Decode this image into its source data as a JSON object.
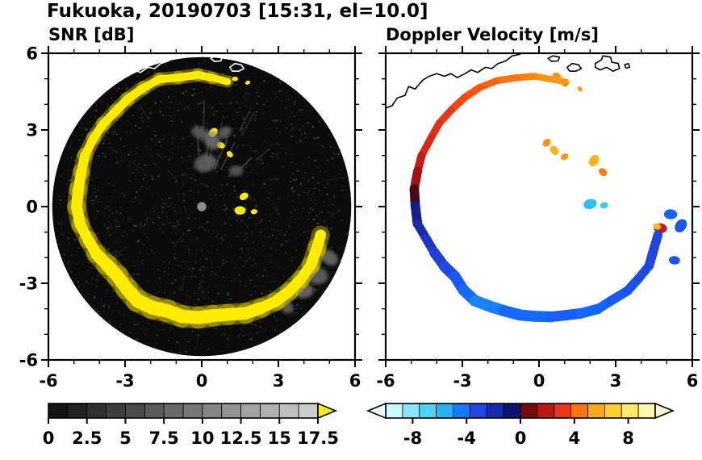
{
  "header": {
    "title": "Fukuoka, 20190703 [15:31, el=10.0]",
    "site": "Fukuoka",
    "date": "20190703",
    "time": "15:31",
    "elevation": "10.0"
  },
  "panels": {
    "snr": {
      "title": "SNR [dB]"
    },
    "doppler": {
      "title": "Doppler Velocity [m/s]"
    }
  },
  "axes": {
    "xlim": [
      -6,
      6
    ],
    "ylim": [
      -6,
      6
    ],
    "major_ticks": [
      -6,
      -3,
      0,
      3,
      6
    ],
    "major_tick_labels": [
      "-6",
      "-3",
      "0",
      "3",
      "6"
    ],
    "minor_ticks": [
      -5,
      -4,
      -2,
      -1,
      1,
      2,
      4,
      5
    ]
  },
  "colorbars": {
    "snr": {
      "range": [
        0,
        17.5
      ],
      "segment_step": 1.25,
      "tick_values": [
        0,
        2.5,
        5,
        7.5,
        10,
        12.5,
        15,
        17.5
      ],
      "tick_labels": [
        "0",
        "2.5",
        "5",
        "7.5",
        "10",
        "12.5",
        "15",
        "17.5"
      ],
      "gray_min": "#0c0c0c",
      "gray_max": "#d4d4d4",
      "overflow_arrow_color": "#ffec00"
    },
    "doppler": {
      "range": [
        -10,
        10
      ],
      "segment_step": 1.25,
      "tick_values": [
        -8,
        -4,
        0,
        4,
        8
      ],
      "tick_labels": [
        "-8",
        "-4",
        "0",
        "4",
        "8"
      ],
      "underflow_arrow_color": "#eaffff",
      "overflow_arrow_color": "#fffbd2",
      "colormap_stops": [
        [
          -10,
          "#eaffff"
        ],
        [
          -9,
          "#b8f2ff"
        ],
        [
          -7.5,
          "#6cdcf8"
        ],
        [
          -6,
          "#2cc0ee"
        ],
        [
          -5,
          "#1e9aff"
        ],
        [
          -4,
          "#1464ff"
        ],
        [
          -3,
          "#2244e0"
        ],
        [
          -2,
          "#1a2cb4"
        ],
        [
          -1,
          "#101a86"
        ],
        [
          -0.15,
          "#050f58"
        ],
        [
          0.15,
          "#57060a"
        ],
        [
          1,
          "#8a0f10"
        ],
        [
          2,
          "#c21a14"
        ],
        [
          3,
          "#e8321a"
        ],
        [
          3.8,
          "#ff5a10"
        ],
        [
          5,
          "#ff9410"
        ],
        [
          6.5,
          "#ffc428"
        ],
        [
          8,
          "#ffea60"
        ],
        [
          10,
          "#fffbd2"
        ]
      ]
    }
  },
  "coastline": {
    "main": [
      [
        -6.0,
        3.85
      ],
      [
        -5.75,
        3.95
      ],
      [
        -5.55,
        4.25
      ],
      [
        -5.25,
        4.35
      ],
      [
        -5.1,
        4.7
      ],
      [
        -4.85,
        4.6
      ],
      [
        -4.55,
        4.95
      ],
      [
        -4.3,
        5.1
      ],
      [
        -4.0,
        5.2
      ],
      [
        -3.7,
        5.1
      ],
      [
        -3.45,
        5.2
      ],
      [
        -3.2,
        5.05
      ],
      [
        -2.9,
        5.2
      ],
      [
        -2.65,
        5.35
      ],
      [
        -2.4,
        5.25
      ],
      [
        -2.1,
        5.45
      ],
      [
        -1.85,
        5.4
      ],
      [
        -1.6,
        5.6
      ],
      [
        -1.3,
        5.7
      ],
      [
        -1.05,
        5.9
      ],
      [
        -0.8,
        5.95
      ],
      [
        -0.55,
        6.05
      ]
    ],
    "islands": [
      [
        [
          0.35,
          5.8
        ],
        [
          0.55,
          5.9
        ],
        [
          0.8,
          5.85
        ],
        [
          0.75,
          5.7
        ],
        [
          0.5,
          5.68
        ]
      ],
      [
        [
          1.1,
          5.45
        ],
        [
          1.3,
          5.6
        ],
        [
          1.55,
          5.55
        ],
        [
          1.65,
          5.4
        ],
        [
          1.45,
          5.3
        ],
        [
          1.2,
          5.3
        ]
      ],
      [
        [
          2.2,
          5.6
        ],
        [
          2.45,
          5.75
        ],
        [
          2.5,
          5.9
        ],
        [
          2.8,
          5.85
        ],
        [
          2.85,
          5.65
        ],
        [
          3.1,
          5.6
        ],
        [
          3.15,
          5.4
        ],
        [
          2.9,
          5.3
        ],
        [
          2.65,
          5.45
        ],
        [
          2.4,
          5.35
        ],
        [
          2.2,
          5.45
        ]
      ],
      [
        [
          3.35,
          5.55
        ],
        [
          3.5,
          5.6
        ],
        [
          3.55,
          5.45
        ],
        [
          3.4,
          5.42
        ]
      ]
    ]
  },
  "chart_data": [
    {
      "type": "heatmap",
      "name": "SNR",
      "title": "SNR [dB]",
      "units": "dB",
      "xlim": [
        -6,
        6
      ],
      "ylim": [
        -6,
        6
      ],
      "colorbar": {
        "range": [
          0,
          17.5
        ],
        "ticks": [
          0,
          2.5,
          5,
          7.5,
          10,
          12.5,
          15,
          17.5
        ],
        "colormap": "grayscale",
        "overflow": "yellow"
      },
      "scan_disc": {
        "cx": 0,
        "cy": 0,
        "radius": 5.85,
        "color": "#0b0b0b"
      },
      "center_marker": {
        "x": 0,
        "y": 0,
        "radius": 0.18,
        "color": "#8f8f8f"
      },
      "echo_ring_points": [
        [
          78,
          5.0,
          18,
          0.26
        ],
        [
          85,
          5.05,
          18,
          0.3
        ],
        [
          92,
          5.12,
          18,
          0.3
        ],
        [
          100,
          5.15,
          18,
          0.32
        ],
        [
          108,
          5.2,
          18,
          0.3
        ],
        [
          116,
          5.18,
          18,
          0.32
        ],
        [
          124,
          5.12,
          18,
          0.35
        ],
        [
          132,
          5.05,
          18,
          0.33
        ],
        [
          140,
          5.08,
          18,
          0.35
        ],
        [
          148,
          5.02,
          18,
          0.33
        ],
        [
          156,
          4.98,
          18,
          0.35
        ],
        [
          164,
          4.94,
          18,
          0.4
        ],
        [
          172,
          4.9,
          18,
          0.42
        ],
        [
          180,
          4.86,
          18,
          0.45
        ],
        [
          188,
          4.78,
          18,
          0.42
        ],
        [
          196,
          4.62,
          18,
          0.4
        ],
        [
          204,
          4.5,
          18,
          0.45
        ],
        [
          212,
          4.36,
          18,
          0.5
        ],
        [
          220,
          4.3,
          18,
          0.52
        ],
        [
          228,
          4.38,
          18,
          0.5
        ],
        [
          236,
          4.42,
          18,
          0.55
        ],
        [
          244,
          4.36,
          18,
          0.52
        ],
        [
          252,
          4.3,
          18,
          0.55
        ],
        [
          260,
          4.34,
          18,
          0.5
        ],
        [
          268,
          4.3,
          18,
          0.52
        ],
        [
          276,
          4.32,
          18,
          0.5
        ],
        [
          284,
          4.36,
          18,
          0.48
        ],
        [
          292,
          4.46,
          18,
          0.5
        ],
        [
          300,
          4.58,
          18,
          0.45
        ],
        [
          308,
          4.68,
          18,
          0.42
        ],
        [
          316,
          4.76,
          18,
          0.45
        ],
        [
          324,
          4.84,
          18,
          0.4
        ],
        [
          332,
          4.86,
          18,
          0.42
        ],
        [
          340,
          4.82,
          18,
          0.45
        ],
        [
          347,
          4.8,
          18,
          0.4
        ]
      ],
      "spots": [
        [
          0.45,
          2.9,
          18,
          0.2
        ],
        [
          0.75,
          2.4,
          18,
          0.16
        ],
        [
          1.1,
          2.05,
          18,
          0.14
        ],
        [
          1.65,
          0.4,
          18,
          0.18
        ],
        [
          1.5,
          -0.15,
          18,
          0.22
        ],
        [
          2.05,
          -0.2,
          18,
          0.13
        ],
        [
          1.3,
          5.0,
          18,
          0.12
        ],
        [
          1.8,
          4.85,
          18,
          0.1
        ],
        [
          0.15,
          1.7,
          9,
          0.45
        ],
        [
          0.4,
          2.6,
          10,
          0.4
        ],
        [
          -0.1,
          2.9,
          8,
          0.32
        ],
        [
          0.9,
          2.9,
          9,
          0.28
        ],
        [
          1.35,
          1.4,
          8,
          0.28
        ],
        [
          4.5,
          -2.7,
          9,
          0.45
        ],
        [
          4.0,
          -3.3,
          10,
          0.38
        ],
        [
          3.3,
          -3.9,
          9,
          0.32
        ],
        [
          5.0,
          -2.0,
          10,
          0.36
        ]
      ]
    },
    {
      "type": "heatmap",
      "name": "Doppler Velocity",
      "title": "Doppler Velocity [m/s]",
      "units": "m/s",
      "xlim": [
        -6,
        6
      ],
      "ylim": [
        -6,
        6
      ],
      "colorbar": {
        "range": [
          -10,
          10
        ],
        "ticks": [
          -8,
          -4,
          0,
          4,
          8
        ],
        "colormap": "cyan-blue-red-yellow",
        "arrows": "both"
      },
      "echo_ring_points": [
        [
          78,
          5.0,
          5.0,
          0.24
        ],
        [
          85,
          5.05,
          5.2,
          0.26
        ],
        [
          92,
          5.12,
          4.8,
          0.26
        ],
        [
          100,
          5.15,
          4.5,
          0.28
        ],
        [
          108,
          5.2,
          4.2,
          0.26
        ],
        [
          116,
          5.18,
          3.8,
          0.28
        ],
        [
          124,
          5.12,
          3.6,
          0.3
        ],
        [
          132,
          5.05,
          3.2,
          0.28
        ],
        [
          140,
          5.08,
          3.0,
          0.3
        ],
        [
          148,
          5.02,
          2.8,
          0.28
        ],
        [
          156,
          4.98,
          2.4,
          0.3
        ],
        [
          164,
          4.94,
          1.8,
          0.34
        ],
        [
          172,
          4.9,
          1.0,
          0.36
        ],
        [
          180,
          4.86,
          -0.8,
          0.38
        ],
        [
          188,
          4.78,
          -1.6,
          0.36
        ],
        [
          196,
          4.62,
          -2.2,
          0.34
        ],
        [
          204,
          4.5,
          -2.6,
          0.38
        ],
        [
          212,
          4.36,
          -3.0,
          0.42
        ],
        [
          220,
          4.3,
          -3.4,
          0.44
        ],
        [
          228,
          4.38,
          -3.8,
          0.42
        ],
        [
          236,
          4.42,
          -4.4,
          0.46
        ],
        [
          244,
          4.36,
          -4.8,
          0.44
        ],
        [
          252,
          4.3,
          -4.2,
          0.46
        ],
        [
          260,
          4.34,
          -3.9,
          0.42
        ],
        [
          268,
          4.3,
          -4.3,
          0.44
        ],
        [
          276,
          4.32,
          -4.0,
          0.42
        ],
        [
          284,
          4.36,
          -3.7,
          0.4
        ],
        [
          292,
          4.46,
          -3.9,
          0.42
        ],
        [
          300,
          4.58,
          -4.2,
          0.38
        ],
        [
          308,
          4.68,
          -3.8,
          0.36
        ],
        [
          316,
          4.76,
          -3.5,
          0.38
        ],
        [
          324,
          4.84,
          -3.3,
          0.34
        ],
        [
          332,
          4.86,
          -3.1,
          0.36
        ],
        [
          340,
          4.82,
          -3.0,
          0.38
        ],
        [
          347,
          4.8,
          -2.9,
          0.34
        ]
      ],
      "spots": [
        [
          0.3,
          2.5,
          5.0,
          0.18
        ],
        [
          0.6,
          2.2,
          6.0,
          0.2
        ],
        [
          1.0,
          1.95,
          5.0,
          0.16
        ],
        [
          2.15,
          1.8,
          6.0,
          0.24
        ],
        [
          2.5,
          1.35,
          4.5,
          0.18
        ],
        [
          2.0,
          0.1,
          -6.0,
          0.26
        ],
        [
          2.55,
          0.05,
          -6.5,
          0.16
        ],
        [
          4.75,
          -0.85,
          2.0,
          0.26
        ],
        [
          4.62,
          -0.78,
          6.0,
          0.16
        ],
        [
          5.15,
          -0.3,
          -4.0,
          0.26
        ],
        [
          5.55,
          -0.75,
          -3.5,
          0.28
        ],
        [
          5.3,
          -2.1,
          -3.5,
          0.22
        ],
        [
          0.7,
          5.1,
          5.0,
          0.18
        ],
        [
          1.0,
          4.8,
          4.5,
          0.13
        ],
        [
          1.6,
          4.6,
          5.0,
          0.11
        ]
      ]
    }
  ]
}
